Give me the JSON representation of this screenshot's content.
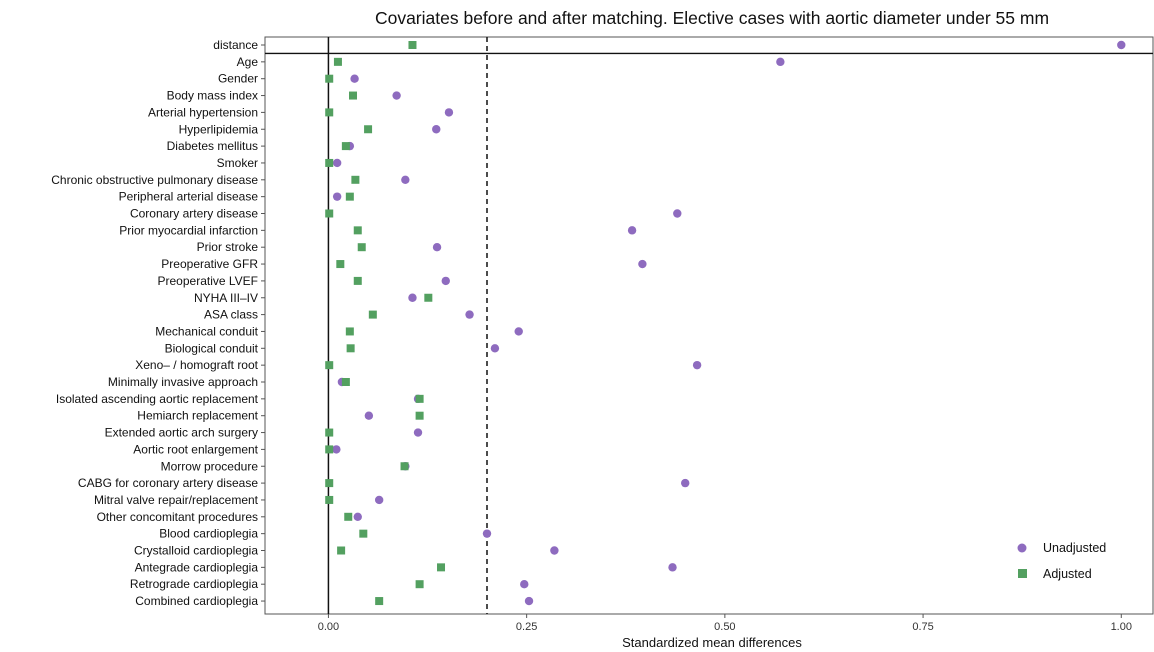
{
  "chart_data": {
    "type": "scatter",
    "title": "Covariates before and after matching. Elective cases with aortic diameter under 55 mm",
    "xlabel": "Standardized mean differences",
    "ylabel": "",
    "xlim": [
      -0.08,
      1.04
    ],
    "x_ticks": [
      "0.00",
      "0.25",
      "0.50",
      "0.75",
      "1.00"
    ],
    "x_tick_values": [
      0,
      0.25,
      0.5,
      0.75,
      1.0
    ],
    "reference_lines": [
      0,
      0.2
    ],
    "grid": false,
    "legend_position": "bottom-right",
    "colors": {
      "unadjusted": "#8e6bbf",
      "adjusted": "#53a060"
    },
    "categories": [
      "distance",
      "Age",
      "Gender",
      "Body mass index",
      "Arterial hypertension",
      "Hyperlipidemia",
      "Diabetes mellitus",
      "Smoker",
      "Chronic obstructive pulmonary disease",
      "Peripheral arterial disease",
      "Coronary artery disease",
      "Prior myocardial infarction",
      "Prior stroke",
      "Preoperative GFR",
      "Preoperative LVEF",
      "NYHA III–IV",
      "ASA class",
      "Mechanical conduit",
      "Biological conduit",
      "Xeno– / homograft root",
      "Minimally invasive approach",
      "Isolated ascending aortic replacement",
      "Hemiarch replacement",
      "Extended aortic arch surgery",
      "Aortic root enlargement",
      "Morrow procedure",
      "CABG for coronary artery disease",
      "Mitral valve repair/replacement",
      "Other concomitant procedures",
      "Blood cardioplegia",
      "Crystalloid cardioplegia",
      "Antegrade cardioplegia",
      "Retrograde cardioplegia",
      "Combined cardioplegia"
    ],
    "series": [
      {
        "name": "Unadjusted",
        "marker": "circle",
        "values": [
          1.0,
          0.57,
          0.033,
          0.086,
          0.152,
          0.136,
          0.027,
          0.011,
          0.097,
          0.011,
          0.44,
          0.383,
          0.137,
          0.396,
          0.148,
          0.106,
          0.178,
          0.24,
          0.21,
          0.465,
          0.017,
          0.113,
          0.051,
          0.113,
          0.01,
          0.097,
          0.45,
          0.064,
          0.037,
          0.2,
          0.285,
          0.434,
          0.247,
          0.253
        ]
      },
      {
        "name": "Adjusted",
        "marker": "square",
        "values": [
          0.106,
          0.012,
          0.001,
          0.031,
          0.001,
          0.05,
          0.022,
          0.001,
          0.034,
          0.027,
          0.001,
          0.037,
          0.042,
          0.015,
          0.037,
          0.126,
          0.056,
          0.027,
          0.028,
          0.001,
          0.022,
          0.115,
          0.115,
          0.001,
          0.001,
          0.096,
          0.001,
          0.001,
          0.025,
          0.044,
          0.016,
          0.142,
          0.115,
          0.064
        ]
      }
    ]
  }
}
